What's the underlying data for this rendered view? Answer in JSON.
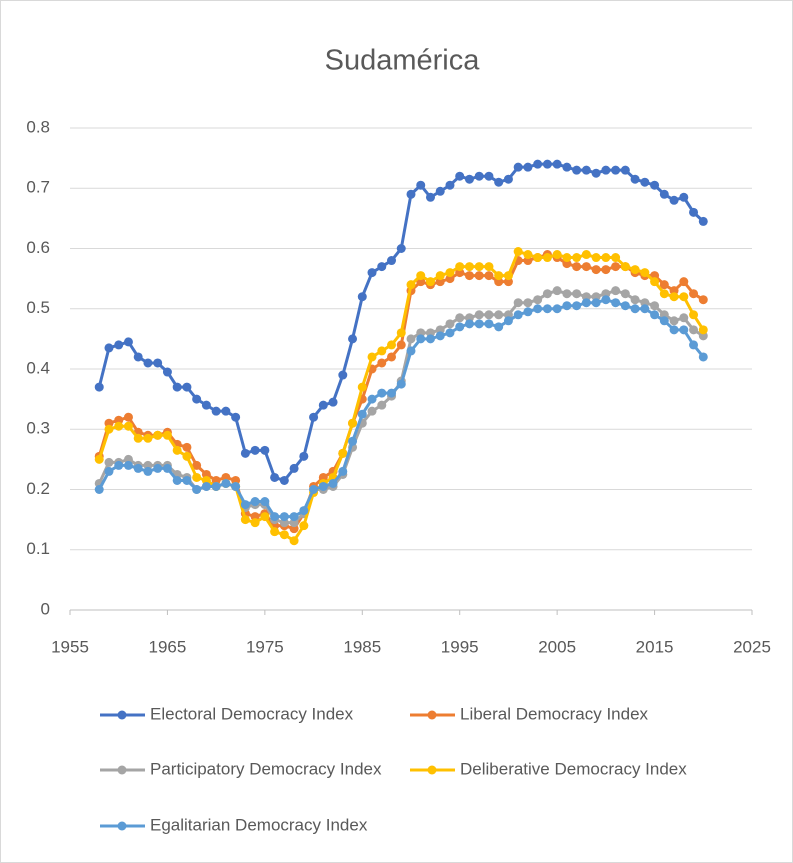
{
  "chart_data": {
    "type": "line",
    "title": "Sudamérica",
    "x": [
      1958,
      1959,
      1960,
      1961,
      1962,
      1963,
      1964,
      1965,
      1966,
      1967,
      1968,
      1969,
      1970,
      1971,
      1972,
      1973,
      1974,
      1975,
      1976,
      1977,
      1978,
      1979,
      1980,
      1981,
      1982,
      1983,
      1984,
      1985,
      1986,
      1987,
      1988,
      1989,
      1990,
      1991,
      1992,
      1993,
      1994,
      1995,
      1996,
      1997,
      1998,
      1999,
      2000,
      2001,
      2002,
      2003,
      2004,
      2005,
      2006,
      2007,
      2008,
      2009,
      2010,
      2011,
      2012,
      2013,
      2014,
      2015,
      2016,
      2017,
      2018,
      2019,
      2020
    ],
    "series": [
      {
        "name": "Electoral Democracy Index",
        "color": "#4472c4",
        "values": [
          0.37,
          0.435,
          0.44,
          0.445,
          0.42,
          0.41,
          0.41,
          0.395,
          0.37,
          0.37,
          0.35,
          0.34,
          0.33,
          0.33,
          0.32,
          0.26,
          0.265,
          0.265,
          0.22,
          0.215,
          0.235,
          0.255,
          0.32,
          0.34,
          0.345,
          0.39,
          0.45,
          0.52,
          0.56,
          0.57,
          0.58,
          0.6,
          0.69,
          0.705,
          0.685,
          0.695,
          0.705,
          0.72,
          0.715,
          0.72,
          0.72,
          0.71,
          0.715,
          0.735,
          0.735,
          0.74,
          0.74,
          0.74,
          0.735,
          0.73,
          0.73,
          0.725,
          0.73,
          0.73,
          0.73,
          0.715,
          0.71,
          0.705,
          0.69,
          0.68,
          0.685,
          0.66,
          0.645
        ]
      },
      {
        "name": "Liberal Democracy Index",
        "color": "#ed7d31",
        "values": [
          0.255,
          0.31,
          0.315,
          0.32,
          0.295,
          0.29,
          0.29,
          0.295,
          0.275,
          0.27,
          0.24,
          0.225,
          0.215,
          0.22,
          0.215,
          0.16,
          0.155,
          0.16,
          0.14,
          0.14,
          0.135,
          0.16,
          0.205,
          0.22,
          0.23,
          0.26,
          0.31,
          0.35,
          0.4,
          0.41,
          0.42,
          0.44,
          0.53,
          0.545,
          0.54,
          0.545,
          0.55,
          0.56,
          0.555,
          0.555,
          0.555,
          0.545,
          0.545,
          0.58,
          0.58,
          0.585,
          0.59,
          0.585,
          0.575,
          0.57,
          0.57,
          0.565,
          0.565,
          0.57,
          0.57,
          0.56,
          0.555,
          0.555,
          0.54,
          0.53,
          0.545,
          0.525,
          0.515
        ]
      },
      {
        "name": "Participatory Democracy Index",
        "color": "#a5a5a5",
        "values": [
          0.21,
          0.245,
          0.245,
          0.25,
          0.24,
          0.24,
          0.24,
          0.24,
          0.225,
          0.22,
          0.2,
          0.205,
          0.205,
          0.21,
          0.205,
          0.17,
          0.175,
          0.175,
          0.15,
          0.145,
          0.145,
          0.16,
          0.2,
          0.2,
          0.205,
          0.225,
          0.27,
          0.31,
          0.33,
          0.34,
          0.355,
          0.38,
          0.45,
          0.46,
          0.46,
          0.465,
          0.475,
          0.485,
          0.485,
          0.49,
          0.49,
          0.49,
          0.49,
          0.51,
          0.51,
          0.515,
          0.525,
          0.53,
          0.525,
          0.525,
          0.52,
          0.52,
          0.525,
          0.53,
          0.525,
          0.515,
          0.51,
          0.505,
          0.49,
          0.48,
          0.485,
          0.465,
          0.455
        ]
      },
      {
        "name": "Deliberative Democracy Index",
        "color": "#ffc000",
        "values": [
          0.25,
          0.3,
          0.305,
          0.305,
          0.285,
          0.285,
          0.29,
          0.29,
          0.265,
          0.255,
          0.22,
          0.215,
          0.205,
          0.21,
          0.205,
          0.15,
          0.145,
          0.155,
          0.13,
          0.125,
          0.115,
          0.14,
          0.195,
          0.21,
          0.22,
          0.26,
          0.31,
          0.37,
          0.42,
          0.43,
          0.44,
          0.46,
          0.54,
          0.555,
          0.545,
          0.555,
          0.56,
          0.57,
          0.57,
          0.57,
          0.57,
          0.555,
          0.555,
          0.595,
          0.59,
          0.585,
          0.585,
          0.59,
          0.585,
          0.585,
          0.59,
          0.585,
          0.585,
          0.585,
          0.57,
          0.565,
          0.56,
          0.545,
          0.525,
          0.52,
          0.52,
          0.49,
          0.465
        ]
      },
      {
        "name": "Egalitarian Democracy Index",
        "color": "#5b9bd5",
        "values": [
          0.2,
          0.23,
          0.24,
          0.24,
          0.235,
          0.23,
          0.235,
          0.235,
          0.215,
          0.215,
          0.2,
          0.205,
          0.205,
          0.21,
          0.205,
          0.175,
          0.18,
          0.18,
          0.155,
          0.155,
          0.155,
          0.165,
          0.2,
          0.205,
          0.21,
          0.23,
          0.28,
          0.325,
          0.35,
          0.36,
          0.36,
          0.375,
          0.43,
          0.45,
          0.45,
          0.455,
          0.46,
          0.47,
          0.475,
          0.475,
          0.475,
          0.47,
          0.48,
          0.49,
          0.495,
          0.5,
          0.5,
          0.5,
          0.505,
          0.505,
          0.51,
          0.51,
          0.515,
          0.51,
          0.505,
          0.5,
          0.5,
          0.49,
          0.48,
          0.465,
          0.465,
          0.44,
          0.42
        ]
      }
    ],
    "xlim": [
      1955,
      2025
    ],
    "xticks": [
      1955,
      1965,
      1975,
      1985,
      1995,
      2005,
      2015,
      2025
    ],
    "ylim": [
      0,
      0.8
    ],
    "yticks": [
      0,
      0.1,
      0.2,
      0.3,
      0.4,
      0.5,
      0.6,
      0.7,
      0.8
    ],
    "grid": true,
    "legend": "bottom"
  }
}
